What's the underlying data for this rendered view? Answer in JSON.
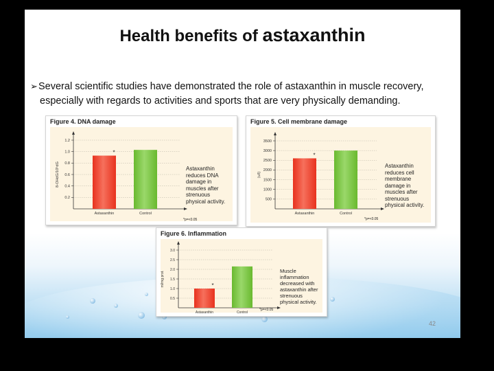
{
  "slide": {
    "title_prefix": "Health benefits of ",
    "title_emphasis": "astaxanthin",
    "bullet_line1": "Several scientific studies have demonstrated the role of astaxanthin in muscle recovery,",
    "bullet_line2": "especially with regards to activities and sports that are very physically demanding.",
    "page_number": "42"
  },
  "colors": {
    "astaxanthin_bar": "#e8321e",
    "control_bar": "#69b92f",
    "panel_bg": "#fdf4e1"
  },
  "figures": [
    {
      "caption": "Figure 4. DNA damage",
      "note": [
        "Astaxanthin",
        "reduces DNA",
        "damage in",
        "muscles after",
        "strenuous",
        "physical activity."
      ],
      "pvalue": "*p=<0.05"
    },
    {
      "caption": "Figure 5. Cell membrane damage",
      "note": [
        "Astaxanthin",
        "reduces cell",
        "membrane",
        "damage in",
        "muscles after",
        "strenuous",
        "physical activity."
      ],
      "pvalue": "*p=<0.05"
    },
    {
      "caption": "Figure 6. Inflammation",
      "note": [
        "Muscle",
        "inflammation",
        "decreased with",
        "astaxanthin after",
        "strenuous",
        "physical activity."
      ],
      "pvalue": "*p=<0.05"
    }
  ],
  "chart_data": [
    {
      "type": "bar",
      "title": "Figure 4. DNA damage",
      "categories": [
        "Astaxanthin",
        "Control"
      ],
      "values": [
        0.93,
        1.03
      ],
      "significance_marker": "*",
      "ylabel": "8-OHdG/10⁵dG",
      "ylim": [
        0,
        1.2
      ],
      "yticks": [
        "0.2",
        "0.4",
        "0.6",
        "0.8",
        "1.0",
        "1.2"
      ],
      "ytick_values": [
        0.2,
        0.4,
        0.6,
        0.8,
        1.0,
        1.2
      ]
    },
    {
      "type": "bar",
      "title": "Figure 5. Cell membrane damage",
      "categories": [
        "Astaxanthin",
        "Control"
      ],
      "values": [
        2600,
        3000
      ],
      "significance_marker": "*",
      "ylabel": "(u/l)",
      "ylim": [
        0,
        3500
      ],
      "yticks": [
        "500",
        "1000",
        "1500",
        "2000",
        "2500",
        "3000",
        "3500"
      ],
      "ytick_values": [
        500,
        1000,
        1500,
        2000,
        2500,
        3000,
        3500
      ]
    },
    {
      "type": "bar",
      "title": "Figure 6. Inflammation",
      "categories": [
        "Astaxanthin",
        "Control"
      ],
      "values": [
        1.0,
        2.15
      ],
      "significance_marker": "*",
      "ylabel": "ml/mg prot.",
      "ylim": [
        0,
        3.0
      ],
      "yticks": [
        "0.5",
        "1.0",
        "1.5",
        "2.0",
        "2.5",
        "3.0"
      ],
      "ytick_values": [
        0.5,
        1.0,
        1.5,
        2.0,
        2.5,
        3.0
      ]
    }
  ]
}
